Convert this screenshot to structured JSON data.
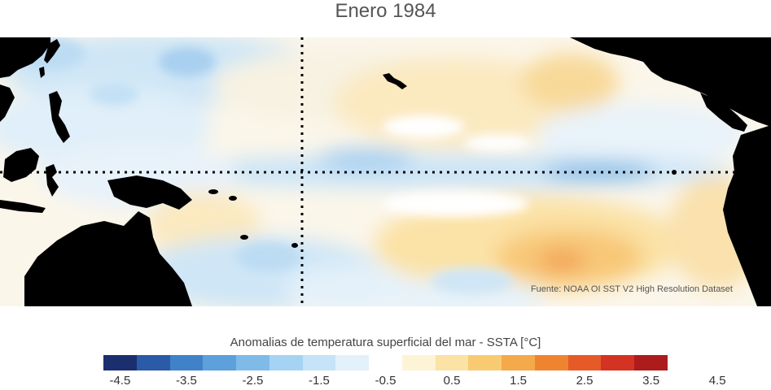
{
  "title": "Enero 1984",
  "source": "Fuente: NOAA OI SST V2 High Resolution Dataset",
  "colorbar": {
    "label": "Anomalias de temperatura superficial del mar - SSTA  [°C]",
    "colors": [
      "#1b2f6e",
      "#2a5aa8",
      "#3f82c8",
      "#5da0db",
      "#7fbbe9",
      "#a5d3f3",
      "#c6e3f7",
      "#e2f1fa",
      "#ffffff",
      "#fdf3d6",
      "#fbe3a6",
      "#f8cb72",
      "#f4a94b",
      "#ef8430",
      "#e65a28",
      "#d43223",
      "#ad1c1d"
    ],
    "tick_labels": [
      "-4.5",
      "-3.5",
      "-2.5",
      "-1.5",
      "-0.5",
      "0.5",
      "1.5",
      "2.5",
      "3.5",
      "4.5"
    ]
  },
  "colors": {
    "land": "#000000",
    "reference_lines": "#000000"
  }
}
